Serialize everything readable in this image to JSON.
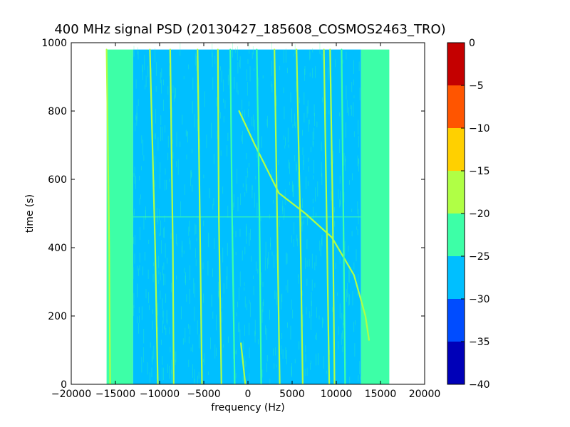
{
  "chart_data": {
    "type": "heatmap",
    "title": "400 MHz signal PSD (20130427_185608_COSMOS2463_TRO)",
    "xlabel": "frequency (Hz)",
    "ylabel": "time (s)",
    "xlim": [
      -20000,
      20000
    ],
    "ylim": [
      0,
      1000
    ],
    "xticks": [
      -20000,
      -15000,
      -10000,
      -5000,
      0,
      5000,
      10000,
      15000,
      20000
    ],
    "xtick_labels": [
      "−20000",
      "−15000",
      "−10000",
      "−5000",
      "0",
      "5000",
      "10000",
      "15000",
      "20000"
    ],
    "yticks": [
      0,
      200,
      400,
      600,
      800,
      1000
    ],
    "ytick_labels": [
      "0",
      "200",
      "400",
      "600",
      "800",
      "1000"
    ],
    "data_extent": {
      "x": [
        -16000,
        16000
      ],
      "y": [
        0,
        980
      ]
    },
    "colorbar": {
      "levels": [
        -40,
        -35,
        -30,
        -25,
        -20,
        -15,
        -10,
        -5,
        0
      ],
      "labels": [
        "−40",
        "−35",
        "−30",
        "−25",
        "−20",
        "−15",
        "−10",
        "−5",
        "0"
      ],
      "colors": [
        "#0000b8",
        "#004cff",
        "#00bfff",
        "#3dffa7",
        "#b0ff45",
        "#ffd000",
        "#ff5500",
        "#c40000"
      ]
    },
    "background_bands": [
      {
        "x": [
          -16000,
          -13000
        ],
        "level": -22.5
      },
      {
        "x": [
          -13000,
          12800
        ],
        "level": -27.5
      },
      {
        "x": [
          12800,
          16000
        ],
        "level": -22.5
      }
    ],
    "signal_tracks": [
      {
        "points": [
          [
            -16000,
            980
          ],
          [
            -15700,
            400
          ],
          [
            -15600,
            0
          ]
        ],
        "level": -17.5
      },
      {
        "points": [
          [
            -11100,
            980
          ],
          [
            -10500,
            400
          ],
          [
            -10200,
            0
          ]
        ],
        "level": -17.5
      },
      {
        "points": [
          [
            -8800,
            980
          ],
          [
            -8500,
            400
          ],
          [
            -8400,
            0
          ]
        ],
        "level": -17.5
      },
      {
        "points": [
          [
            -5700,
            980
          ],
          [
            -5500,
            600
          ],
          [
            -5200,
            0
          ]
        ],
        "level": -17.5
      },
      {
        "points": [
          [
            -3400,
            980
          ],
          [
            -3300,
            500
          ],
          [
            -3000,
            0
          ]
        ],
        "level": -17.5
      },
      {
        "points": [
          [
            -2000,
            980
          ],
          [
            -1800,
            500
          ],
          [
            -1500,
            0
          ]
        ],
        "level": -22.5
      },
      {
        "points": [
          [
            -1000,
            800
          ],
          [
            800,
            700
          ],
          [
            3500,
            560
          ],
          [
            6500,
            500
          ],
          [
            9500,
            430
          ],
          [
            12000,
            320
          ],
          [
            13300,
            200
          ],
          [
            13700,
            130
          ]
        ],
        "level": -17.5
      },
      {
        "points": [
          [
            -800,
            120
          ],
          [
            -500,
            50
          ],
          [
            -300,
            0
          ]
        ],
        "level": -17.5
      },
      {
        "points": [
          [
            1000,
            980
          ],
          [
            1300,
            500
          ],
          [
            1500,
            0
          ]
        ],
        "level": -22.5
      },
      {
        "points": [
          [
            3000,
            980
          ],
          [
            3300,
            500
          ],
          [
            3600,
            0
          ]
        ],
        "level": -17.5
      },
      {
        "points": [
          [
            5500,
            980
          ],
          [
            5900,
            500
          ],
          [
            6200,
            0
          ]
        ],
        "level": -17.5
      },
      {
        "points": [
          [
            8600,
            980
          ],
          [
            8900,
            500
          ],
          [
            9200,
            0
          ]
        ],
        "level": -17.5
      },
      {
        "points": [
          [
            9300,
            980
          ],
          [
            9600,
            500
          ],
          [
            9800,
            0
          ]
        ],
        "level": -17.5
      },
      {
        "points": [
          [
            10600,
            980
          ],
          [
            10800,
            500
          ],
          [
            11000,
            0
          ]
        ],
        "level": -22.5
      }
    ],
    "horizontal_artifacts": [
      {
        "y": 490,
        "x": [
          -13000,
          13000
        ],
        "level": -22.5
      }
    ],
    "grid": false,
    "legend": "none"
  }
}
